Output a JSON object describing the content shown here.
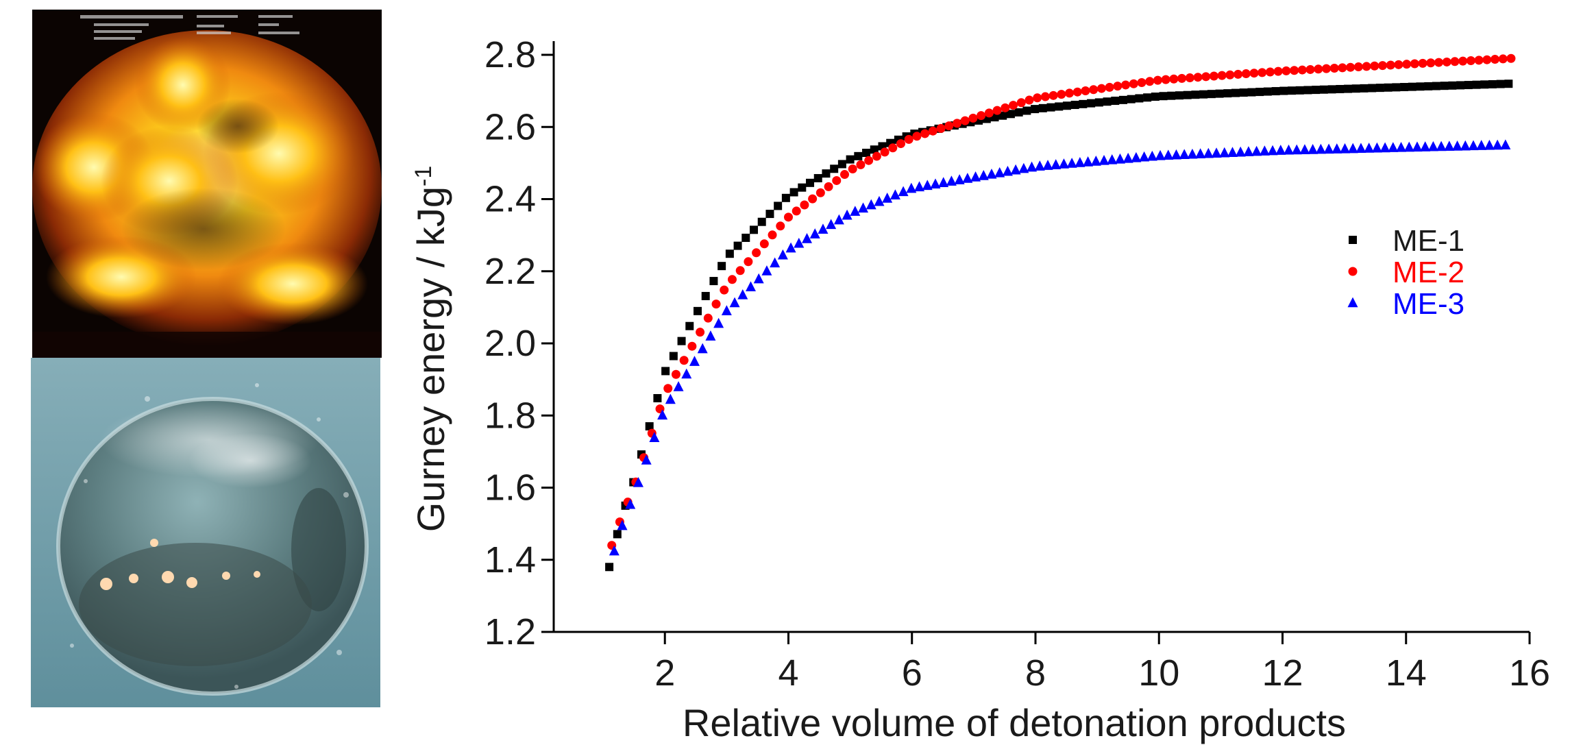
{
  "photos": [
    {
      "name": "explosion-fireball-photo"
    },
    {
      "name": "underwater-bubble-photo"
    }
  ],
  "chart_data": {
    "type": "scatter",
    "title": "",
    "xlabel": "Relative volume of detonation products",
    "ylabel": "Gurney energy / kJg",
    "ylabel_sup": "-1",
    "xlim": [
      0.2,
      16
    ],
    "ylim": [
      1.2,
      2.8
    ],
    "xticks": [
      2,
      4,
      6,
      8,
      10,
      12,
      14,
      16
    ],
    "yticks": [
      1.2,
      1.4,
      1.6,
      1.8,
      2.0,
      2.2,
      2.4,
      2.6,
      2.8
    ],
    "ytick_labels": [
      "1.2",
      "1.4",
      "1.6",
      "1.8",
      "2.0",
      "2.2",
      "2.4",
      "2.6",
      "2.8"
    ],
    "legend_position": "right",
    "x_range": [
      1.1,
      15.7
    ],
    "x_step": 0.13,
    "series": [
      {
        "name": "ME-1",
        "color": "#000000",
        "marker": "square",
        "x": [
          1.1,
          1.3,
          1.5,
          2,
          3,
          4,
          5,
          6,
          8,
          10,
          12,
          15.7
        ],
        "y": [
          1.38,
          1.52,
          1.62,
          1.92,
          2.24,
          2.41,
          2.51,
          2.58,
          2.65,
          2.685,
          2.7,
          2.72
        ]
      },
      {
        "name": "ME-2",
        "color": "#ff0000",
        "marker": "circle",
        "x": [
          1.1,
          1.3,
          1.5,
          2,
          3,
          4,
          5,
          6,
          8,
          10,
          12,
          15.7
        ],
        "y": [
          1.42,
          1.52,
          1.6,
          1.86,
          2.16,
          2.35,
          2.48,
          2.57,
          2.68,
          2.73,
          2.755,
          2.79
        ]
      },
      {
        "name": "ME-3",
        "color": "#0000ff",
        "marker": "triangle",
        "x": [
          1.1,
          1.3,
          1.5,
          2,
          3,
          4,
          5,
          6,
          8,
          10,
          12,
          15.7
        ],
        "y": [
          1.38,
          1.49,
          1.58,
          1.82,
          2.09,
          2.26,
          2.36,
          2.43,
          2.49,
          2.52,
          2.535,
          2.55
        ]
      }
    ]
  }
}
